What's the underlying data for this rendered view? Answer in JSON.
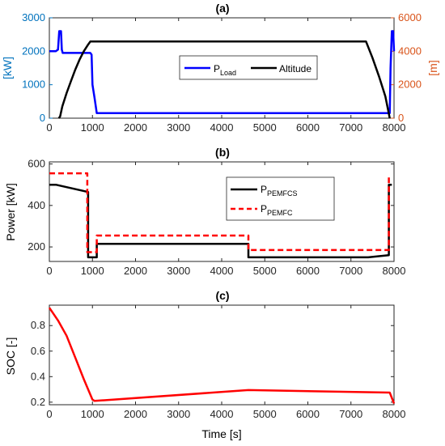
{
  "chart_data": [
    {
      "type": "line",
      "title": "(a)",
      "xlabel": "",
      "ylabel": "[kW]",
      "ylabel_right": "[m]",
      "xlim": [
        0,
        8000
      ],
      "ylim": [
        0,
        3000
      ],
      "ylim_right": [
        0,
        6000
      ],
      "xticks": [
        "0",
        "1000",
        "2000",
        "3000",
        "4000",
        "5000",
        "6000",
        "7000",
        "8000"
      ],
      "yticks": [
        "0",
        "1000",
        "2000",
        "3000"
      ],
      "yticks_right": [
        "0",
        "2000",
        "4000",
        "6000"
      ],
      "grid": false,
      "legend_position": "center",
      "colors": {
        "left_axis": "#0072BD",
        "right_axis": "#D95319",
        "load": "#0000FF",
        "altitude": "#000000"
      },
      "series": [
        {
          "name": "P",
          "subscript": "Load",
          "axis": "left",
          "color": "#0000FF",
          "x": [
            0,
            150,
            200,
            230,
            270,
            290,
            310,
            900,
            950,
            980,
            1000,
            1050,
            1100,
            7900,
            7920,
            7950,
            7980,
            8000
          ],
          "y": [
            2000,
            2000,
            2050,
            2600,
            2600,
            2050,
            1950,
            1950,
            1950,
            1900,
            1000,
            600,
            150,
            150,
            1500,
            2600,
            2600,
            2000
          ]
        },
        {
          "name": "Altitude",
          "axis": "right",
          "color": "#000000",
          "x": [
            220,
            250,
            300,
            400,
            500,
            600,
            700,
            800,
            900,
            950,
            7350,
            7500,
            7650,
            7800,
            7900
          ],
          "y": [
            0,
            100,
            700,
            1500,
            2200,
            2900,
            3500,
            4000,
            4400,
            4580,
            4580,
            3600,
            2500,
            1300,
            0
          ]
        }
      ]
    },
    {
      "type": "line",
      "title": "(b)",
      "xlabel": "",
      "ylabel": "Power [kW]",
      "xlim": [
        0,
        8000
      ],
      "ylim": [
        130,
        610
      ],
      "xticks": [
        "0",
        "1000",
        "2000",
        "3000",
        "4000",
        "5000",
        "6000",
        "7000",
        "8000"
      ],
      "yticks": [
        "200",
        "400",
        "600"
      ],
      "grid": false,
      "legend_position": "top-right",
      "series": [
        {
          "name": "P",
          "subscript": "PEMFCS",
          "color": "#000000",
          "style": "solid",
          "x": [
            0,
            150,
            900,
            900,
            1100,
            1100,
            4620,
            4620,
            7400,
            7880,
            7880,
            7950
          ],
          "y": [
            500,
            500,
            465,
            150,
            150,
            215,
            215,
            150,
            150,
            160,
            500,
            500
          ]
        },
        {
          "name": "P",
          "subscript": "PEMFC",
          "color": "#FF0000",
          "style": "dashed",
          "x": [
            0,
            880,
            880,
            1100,
            1100,
            4620,
            4620,
            7880,
            7880,
            7920
          ],
          "y": [
            555,
            555,
            175,
            175,
            255,
            255,
            185,
            185,
            540,
            540
          ]
        }
      ]
    },
    {
      "type": "line",
      "title": "(c)",
      "xlabel": "Time [s]",
      "ylabel": "SOC [-]",
      "xlim": [
        0,
        8000
      ],
      "ylim": [
        0.18,
        0.96
      ],
      "xticks": [
        "0",
        "1000",
        "2000",
        "3000",
        "4000",
        "5000",
        "6000",
        "7000",
        "8000"
      ],
      "yticks": [
        "0.2",
        "0.4",
        "0.6",
        "0.8"
      ],
      "grid": false,
      "series": [
        {
          "color": "#FF0000",
          "x": [
            0,
            200,
            400,
            600,
            800,
            1000,
            1050,
            4620,
            7900,
            8000
          ],
          "y": [
            0.94,
            0.84,
            0.72,
            0.55,
            0.38,
            0.22,
            0.21,
            0.295,
            0.275,
            0.19
          ]
        }
      ]
    }
  ]
}
